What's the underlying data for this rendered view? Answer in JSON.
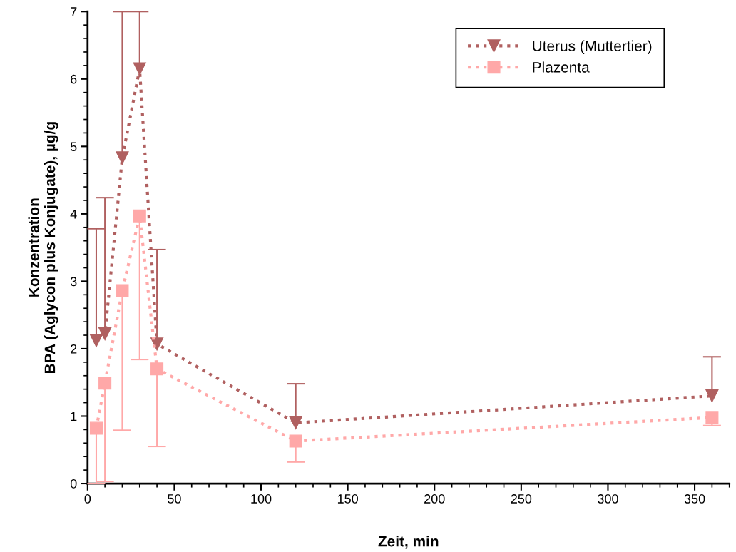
{
  "chart_data": {
    "type": "line",
    "xlabel": "Zeit, min",
    "ylabel": "Konzentration\nBPA (Aglycon plus Konjugate), µg/g",
    "x": [
      5,
      10,
      20,
      30,
      40,
      120,
      360
    ],
    "series": [
      {
        "name": "Uterus (Muttertier)",
        "color": "#b06060",
        "marker": "triangle",
        "values": [
          2.12,
          2.22,
          4.83,
          6.15,
          2.07,
          0.9,
          1.3
        ],
        "errors": [
          [
            2.12,
            3.78
          ],
          [
            2.22,
            4.24
          ],
          [
            4.83,
            7
          ],
          [
            6.15,
            7
          ],
          [
            2.07,
            3.47
          ],
          [
            0.9,
            1.48
          ],
          [
            1.3,
            1.88
          ]
        ]
      },
      {
        "name": "Plazenta",
        "color": "#ffa8a8",
        "marker": "square",
        "values": [
          0.82,
          1.49,
          2.86,
          3.97,
          1.7,
          0.63,
          0.98
        ],
        "errors": [
          [
            0,
            0.82
          ],
          [
            0.03,
            1.49
          ],
          [
            0.79,
            2.86
          ],
          [
            1.84,
            3.97
          ],
          [
            0.55,
            1.7
          ],
          [
            0.32,
            0.63
          ],
          [
            0.86,
            0.98
          ]
        ]
      }
    ],
    "xlim": [
      0,
      370
    ],
    "xticks": [
      0,
      50,
      100,
      150,
      200,
      250,
      300,
      350
    ],
    "ylim": [
      0,
      7
    ],
    "yticks": [
      0,
      1,
      2,
      3,
      4,
      5,
      6,
      7
    ],
    "line_style": "dotted",
    "grid": false,
    "legend": "top right"
  }
}
